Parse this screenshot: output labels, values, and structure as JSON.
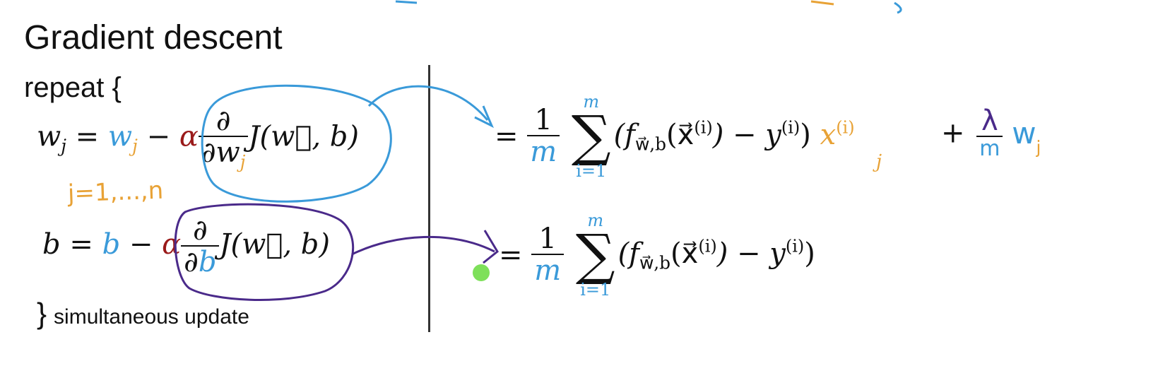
{
  "title": "Gradient descent",
  "repeat_label": "repeat {",
  "closing": {
    "brace": "}",
    "label": "simultaneous update"
  },
  "w_update": {
    "lhs": "w",
    "lhs_sub": "j",
    "eq": "=",
    "w": "w",
    "w_sub": "j",
    "minus": "−",
    "alpha": "α",
    "partial_num": "∂",
    "partial_den": "∂w",
    "partial_den_sub": "j",
    "cost": "J(w⃗, b)"
  },
  "w_range_note": "j=1,...,n",
  "b_update": {
    "lhs": "b",
    "eq": "=",
    "b": "b",
    "minus": "−",
    "alpha": "α",
    "partial_num": "∂",
    "partial_den_d": "∂",
    "partial_den_b": "b",
    "cost": "J(w⃗, b)"
  },
  "w_derivative": {
    "eq": "=",
    "frac_num": "1",
    "frac_den": "m",
    "sum_upper": "m",
    "sum_lower": "i=1",
    "sigma": "∑",
    "body": "(f",
    "f_sub": "w⃗,b",
    "x_part": "(x⃗",
    "x_sup": "(i)",
    "minus_y": ") − y",
    "y_sup": "(i)",
    "close": ")",
    "x_term": "x",
    "x_term_sub": "j",
    "x_term_sup": "(i)",
    "reg_plus": "+",
    "reg_num": "λ",
    "reg_den": "m",
    "reg_w": "w",
    "reg_w_sub": "j"
  },
  "b_derivative": {
    "eq": "=",
    "frac_num": "1",
    "frac_den": "m",
    "sum_upper": "m",
    "sum_lower": "i=1",
    "sigma": "∑",
    "body": "(f",
    "f_sub": "w⃗,b",
    "x_part": "(x⃗",
    "x_sup": "(i)",
    "minus_y": ") − y",
    "y_sup": "(i)",
    "close": ")"
  },
  "colors": {
    "blue": "#3a9ad9",
    "orange": "#e8a236",
    "red": "#9a1a1a",
    "purple": "#4a2a8a",
    "green_dot": "#7ee05a",
    "divider": "#333333"
  }
}
